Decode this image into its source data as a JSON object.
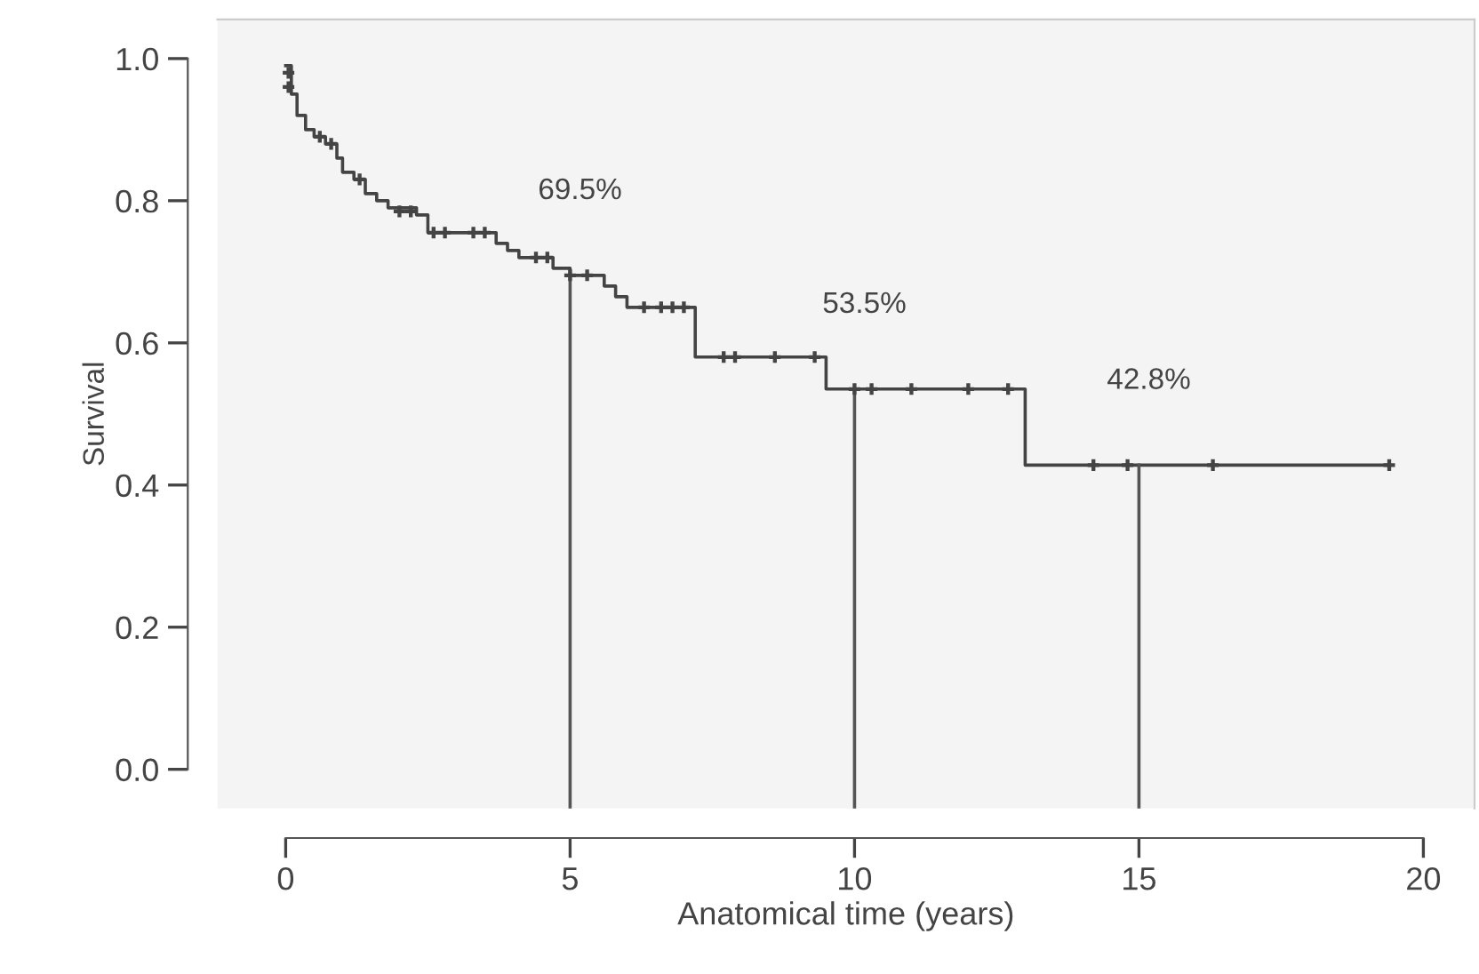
{
  "chart_data": {
    "type": "step",
    "xlabel": "Anatomical time (years)",
    "ylabel": "Survival",
    "xlim": [
      -1.2,
      20.9
    ],
    "ylim": [
      -0.055,
      1.055
    ],
    "xticks": [
      0,
      5,
      10,
      15,
      20
    ],
    "yticks": [
      {
        "value": 0,
        "label": "0.0"
      },
      0.2,
      0.4,
      0.6,
      0.8,
      {
        "value": 1,
        "label": "1.0"
      }
    ],
    "grid": false,
    "line_style": "solid",
    "series": [
      {
        "color": "#444444",
        "x": [
          0,
          0.1,
          0.2,
          0.35,
          0.5,
          0.7,
          0.9,
          1.0,
          1.2,
          1.4,
          1.6,
          1.8,
          2.3,
          2.5,
          3.7,
          3.9,
          4.1,
          4.7,
          5.0,
          5.6,
          5.8,
          6.0,
          7.1,
          7.2,
          9.4,
          9.5,
          13.0,
          19.4
        ],
        "values": [
          0.99,
          0.95,
          0.92,
          0.9,
          0.89,
          0.88,
          0.86,
          0.84,
          0.83,
          0.81,
          0.8,
          0.79,
          0.78,
          0.755,
          0.74,
          0.73,
          0.72,
          0.705,
          0.695,
          0.68,
          0.665,
          0.65,
          0.65,
          0.58,
          0.58,
          0.535,
          0.428,
          0.428
        ]
      },
      {
        "type": "scatter",
        "color": "#444444",
        "marker": "cross",
        "x": [
          0.05,
          0.05,
          0.6,
          0.8,
          1.3,
          2.0,
          2.2,
          2.6,
          2.8,
          3.3,
          3.5,
          4.4,
          4.6,
          5.0,
          5.3,
          6.3,
          6.6,
          6.8,
          7.0,
          7.7,
          7.9,
          8.6,
          9.3,
          10.0,
          10.3,
          11.0,
          12.0,
          12.7,
          14.2,
          14.8,
          16.3,
          19.4
        ],
        "values": [
          0.98,
          0.96,
          0.89,
          0.88,
          0.83,
          0.785,
          0.785,
          0.755,
          0.755,
          0.755,
          0.755,
          0.72,
          0.72,
          0.695,
          0.695,
          0.65,
          0.65,
          0.65,
          0.65,
          0.58,
          0.58,
          0.58,
          0.58,
          0.535,
          0.535,
          0.535,
          0.535,
          0.535,
          0.428,
          0.428,
          0.428,
          0.428
        ]
      },
      {
        "type": "line",
        "color": "#555555",
        "x": [
          5,
          5
        ],
        "values": [
          -0.055,
          0.695
        ]
      },
      {
        "type": "line",
        "color": "#555555",
        "x": [
          10,
          10
        ],
        "values": [
          -0.055,
          0.535
        ]
      },
      {
        "type": "line",
        "color": "#555555",
        "x": [
          15,
          15
        ],
        "values": [
          -0.055,
          0.428
        ]
      }
    ],
    "annotations": [
      {
        "text": "69.5%",
        "x": 5,
        "y": 0.695
      },
      {
        "text": "53.5%",
        "x": 10,
        "y": 0.535
      },
      {
        "text": "42.8%",
        "x": 15,
        "y": 0.428
      }
    ]
  }
}
